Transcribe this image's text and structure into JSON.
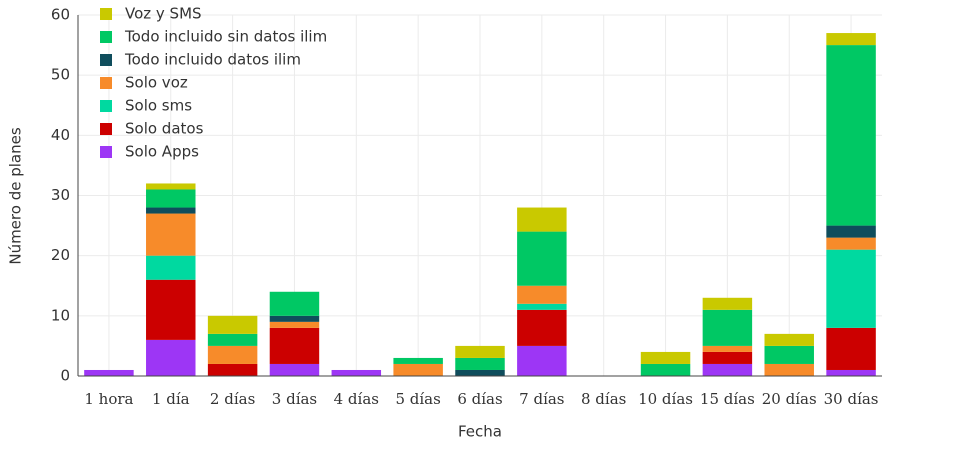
{
  "chart_data": {
    "type": "stacked-bar",
    "x_label": "Fecha",
    "y_label": "Número de planes",
    "categories": [
      "1 hora",
      "1 día",
      "2 días",
      "3 días",
      "4 días",
      "5 días",
      "6 días",
      "7 días",
      "8 días",
      "10 días",
      "15 días",
      "20 días",
      "30 días"
    ],
    "series": [
      {
        "name": "Solo Apps",
        "color": "#9d36f5",
        "values": [
          1,
          6,
          0,
          2,
          1,
          0,
          0,
          5,
          0,
          0,
          2,
          0,
          1
        ]
      },
      {
        "name": "Solo datos",
        "color": "#cc0000",
        "values": [
          0,
          10,
          2,
          6,
          0,
          0,
          0,
          6,
          0,
          0,
          2,
          0,
          7
        ]
      },
      {
        "name": "Solo sms",
        "color": "#00d9a0",
        "values": [
          0,
          4,
          0,
          0,
          0,
          0,
          0,
          1,
          0,
          0,
          0,
          0,
          13
        ]
      },
      {
        "name": "Solo voz",
        "color": "#f78b2a",
        "values": [
          0,
          7,
          3,
          1,
          0,
          2,
          0,
          3,
          0,
          0,
          1,
          2,
          2
        ]
      },
      {
        "name": "Todo incluido datos ilim",
        "color": "#0f4d5c",
        "values": [
          0,
          1,
          0,
          1,
          0,
          0,
          1,
          0,
          0,
          0,
          0,
          0,
          2
        ]
      },
      {
        "name": "Todo incluido sin datos ilim",
        "color": "#00c864",
        "values": [
          0,
          3,
          2,
          4,
          0,
          1,
          2,
          9,
          0,
          2,
          6,
          3,
          30
        ]
      },
      {
        "name": "Voz y SMS",
        "color": "#c9c900",
        "values": [
          0,
          1,
          3,
          0,
          0,
          0,
          2,
          4,
          0,
          2,
          2,
          2,
          2
        ]
      }
    ],
    "ylim": [
      0,
      60
    ],
    "yticks": [
      0,
      10,
      20,
      30,
      40,
      50,
      60
    ],
    "grid": true,
    "legend": "top-left"
  }
}
